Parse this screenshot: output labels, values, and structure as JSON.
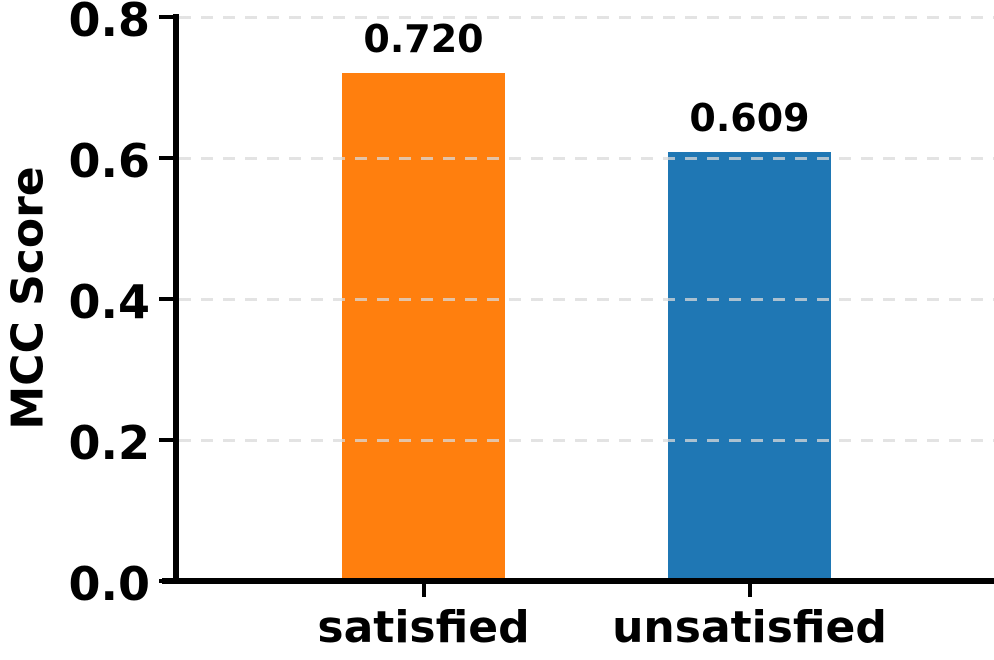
{
  "chart_data": {
    "type": "bar",
    "title": "",
    "xlabel": "",
    "ylabel": "MCC Score",
    "categories": [
      "satisfied",
      "unsatisfied"
    ],
    "values": [
      0.72,
      0.609
    ],
    "bar_labels": [
      "0.720",
      "0.609"
    ],
    "bar_colors": [
      "#ff7f0e",
      "#1f77b4"
    ],
    "ylim": [
      0.0,
      0.8
    ],
    "yticks": [
      0.0,
      0.2,
      0.4,
      0.6,
      0.8
    ],
    "ytick_labels": [
      "0.0",
      "0.2",
      "0.4",
      "0.6",
      "0.8"
    ],
    "grid": "horizontal dashed gridlines at 0.2 intervals, drawn over bars",
    "legend": "none",
    "colors": {
      "axis": "#000000",
      "text": "#000000",
      "gridline": "#dadada",
      "background": "#ffffff"
    }
  }
}
